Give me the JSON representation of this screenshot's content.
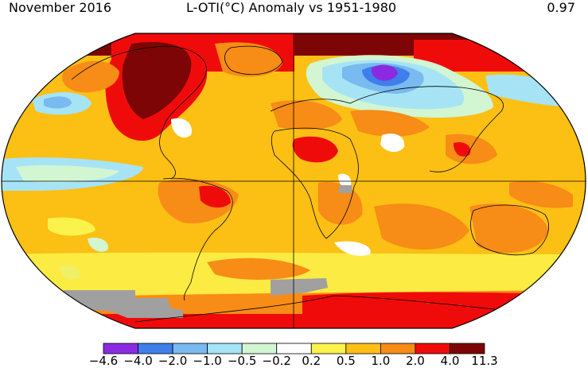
{
  "header": {
    "left": "November 2016",
    "center": "L-OTI(°C) Anomaly vs 1951-1980",
    "right": "0.97"
  },
  "legend": {
    "bins": [
      {
        "color": "#8a2be2"
      },
      {
        "color": "#3f7fea"
      },
      {
        "color": "#79baf0"
      },
      {
        "color": "#a6e4f5"
      },
      {
        "color": "#d2f5d2"
      },
      {
        "color": "#ffffff"
      },
      {
        "color": "#fbf24b"
      },
      {
        "color": "#fcbf14"
      },
      {
        "color": "#f78c16"
      },
      {
        "color": "#f00b0b"
      },
      {
        "color": "#7e0505"
      }
    ],
    "ticks": [
      "−4.6",
      "−4.0",
      "−2.0",
      "−1.0",
      "−0.5",
      "−0.2",
      "0.2",
      "0.5",
      "1.0",
      "2.0",
      "4.0",
      "11.3"
    ]
  },
  "map": {
    "projection": "Robinson",
    "missing_color": "#a0a0a0",
    "regions": [
      {
        "name": "Arctic Canada-Alaska",
        "anomaly": 5.0
      },
      {
        "name": "North America",
        "anomaly": 6.5
      },
      {
        "name": "Central Siberia",
        "anomaly": -5.0
      },
      {
        "name": "Northern Asia",
        "anomaly": -1.5
      },
      {
        "name": "North Pacific",
        "anomaly": -1.0
      },
      {
        "name": "Sahara",
        "anomaly": 2.5
      },
      {
        "name": "Amazon",
        "anomaly": 2.5
      },
      {
        "name": "Southern Ocean",
        "anomaly": 2.5
      }
    ]
  }
}
